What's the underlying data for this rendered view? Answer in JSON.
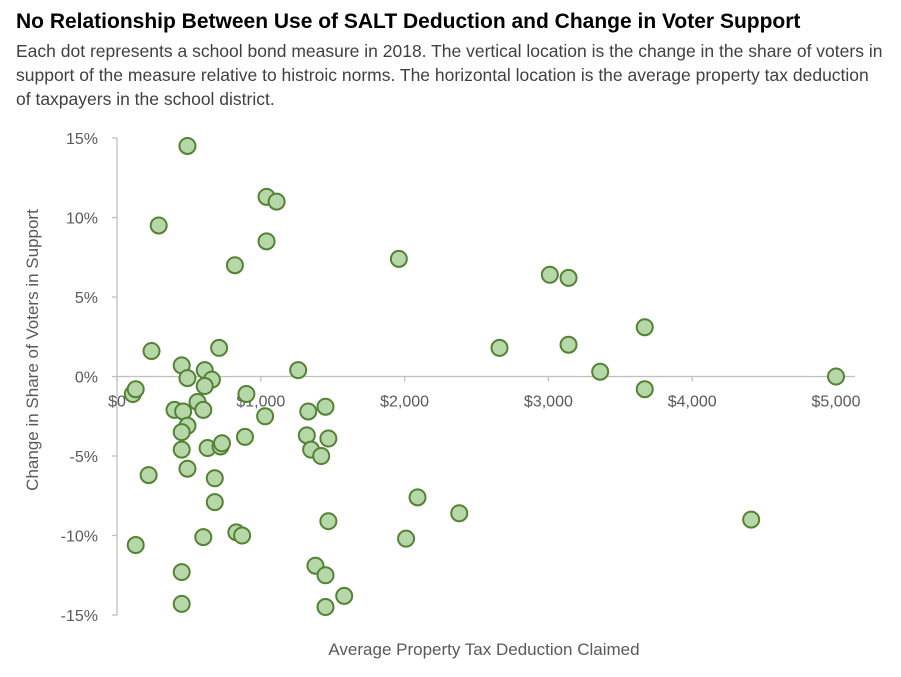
{
  "chart_data": {
    "type": "scatter",
    "title": "No Relationship Between Use of SALT Deduction and Change in Voter Support",
    "subtitle": "Each dot represents a school bond measure in 2018. The vertical location is the change in the share of voters in support of the measure relative to histroic norms. The horizontal location is the average property tax deduction of taxpayers in the school district.",
    "xlabel": "Average Property Tax Deduction Claimed",
    "ylabel": "Change in Share of Voters in Support",
    "xlim": [
      0,
      5000
    ],
    "ylim": [
      -15,
      15
    ],
    "x_ticks": [
      0,
      1000,
      2000,
      3000,
      4000,
      5000
    ],
    "x_tick_labels": [
      "$0",
      "$1,000",
      "$2,000",
      "$3,000",
      "$4,000",
      "$5,000"
    ],
    "y_ticks": [
      15,
      10,
      5,
      0,
      -5,
      -10,
      -15
    ],
    "y_tick_labels": [
      "15%",
      "10%",
      "5%",
      "0%",
      "-5%",
      "-10%",
      "-15%"
    ],
    "grid": false,
    "marker_fill": "#b6d7a8",
    "marker_stroke": "#548235",
    "points": [
      [
        490,
        14.5
      ],
      [
        1040,
        11.3
      ],
      [
        1110,
        11.0
      ],
      [
        290,
        9.5
      ],
      [
        1040,
        8.5
      ],
      [
        820,
        7.0
      ],
      [
        1960,
        7.4
      ],
      [
        3010,
        6.4
      ],
      [
        3140,
        6.2
      ],
      [
        3670,
        3.1
      ],
      [
        2660,
        1.8
      ],
      [
        3140,
        2.0
      ],
      [
        240,
        1.6
      ],
      [
        710,
        1.8
      ],
      [
        3360,
        0.3
      ],
      [
        1260,
        0.4
      ],
      [
        450,
        0.7
      ],
      [
        610,
        0.4
      ],
      [
        490,
        -0.1
      ],
      [
        660,
        -0.2
      ],
      [
        610,
        -0.6
      ],
      [
        3670,
        -0.8
      ],
      [
        5000,
        0.0
      ],
      [
        110,
        -1.1
      ],
      [
        130,
        -0.8
      ],
      [
        900,
        -1.1
      ],
      [
        560,
        -1.6
      ],
      [
        400,
        -2.1
      ],
      [
        460,
        -2.2
      ],
      [
        600,
        -2.1
      ],
      [
        1450,
        -1.9
      ],
      [
        1330,
        -2.2
      ],
      [
        1030,
        -2.5
      ],
      [
        490,
        -3.1
      ],
      [
        450,
        -3.5
      ],
      [
        450,
        -4.6
      ],
      [
        630,
        -4.5
      ],
      [
        720,
        -4.4
      ],
      [
        730,
        -4.2
      ],
      [
        890,
        -3.8
      ],
      [
        1320,
        -3.7
      ],
      [
        1470,
        -3.9
      ],
      [
        1350,
        -4.6
      ],
      [
        1420,
        -5.0
      ],
      [
        220,
        -6.2
      ],
      [
        490,
        -5.8
      ],
      [
        680,
        -6.4
      ],
      [
        680,
        -7.9
      ],
      [
        1470,
        -9.1
      ],
      [
        830,
        -9.8
      ],
      [
        870,
        -10.0
      ],
      [
        600,
        -10.1
      ],
      [
        130,
        -10.6
      ],
      [
        1380,
        -11.9
      ],
      [
        1450,
        -12.5
      ],
      [
        450,
        -12.3
      ],
      [
        450,
        -14.3
      ],
      [
        1450,
        -14.5
      ],
      [
        1580,
        -13.8
      ],
      [
        2090,
        -7.6
      ],
      [
        2010,
        -10.2
      ],
      [
        2380,
        -8.6
      ],
      [
        4410,
        -9.0
      ]
    ]
  }
}
